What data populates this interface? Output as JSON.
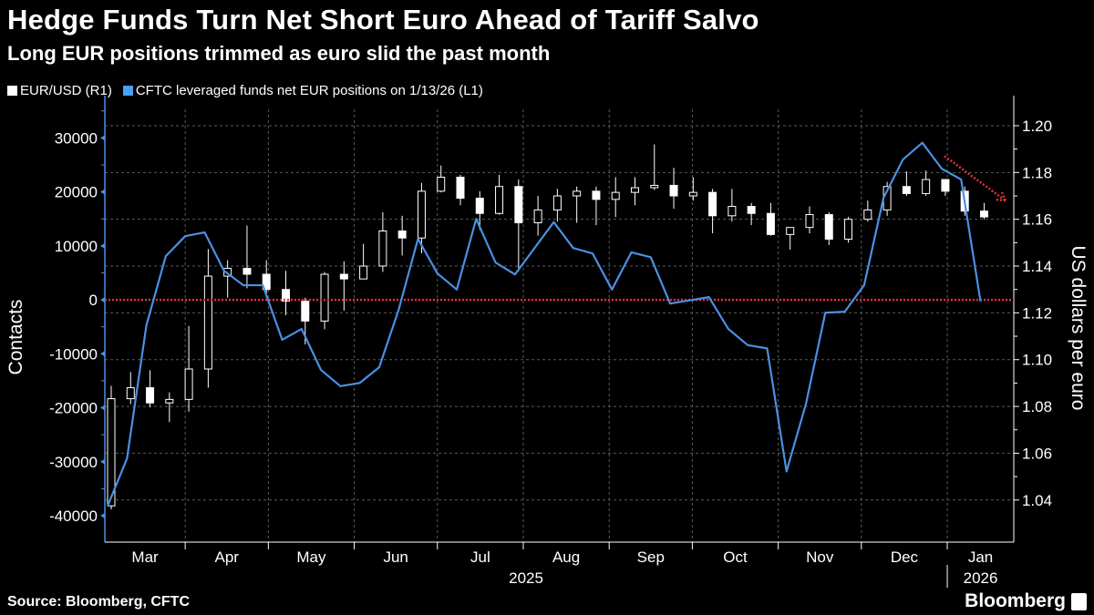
{
  "header": {
    "title": "Hedge Funds Turn Net Short Euro Ahead of Tariff Salvo",
    "subtitle": "Long EUR positions trimmed as euro slid the past month"
  },
  "footer": {
    "source": "Source: Bloomberg, CFTC",
    "logo_text": "Bloomberg"
  },
  "colors": {
    "background": "#000000",
    "eurusd": "#ffffff",
    "cftc": "#4a90e2",
    "zero_line": "#e0303a",
    "grid": "#5a5a5a"
  },
  "chart_data": {
    "type": "line",
    "legend": [
      {
        "label": "EUR/USD (R1)",
        "color": "#ffffff"
      },
      {
        "label": "CFTC leveraged funds net EUR positions on 1/13/26 (L1)",
        "color": "#4a90e2"
      }
    ],
    "legend_position": "top-left",
    "grid": true,
    "xlim": [
      "2025-03-03",
      "2026-01-25"
    ],
    "x_tick_labels": [
      "Mar",
      "Apr",
      "May",
      "Jun",
      "Jul",
      "Aug",
      "Sep",
      "Oct",
      "Nov",
      "Dec",
      "Jan"
    ],
    "x_year_labels": [
      "2025",
      "2026"
    ],
    "left_axis": {
      "label": "Contacts",
      "ylim": [
        -44900,
        35300
      ],
      "ticks": [
        30000,
        20000,
        10000,
        0,
        -10000,
        -20000,
        -30000,
        -40000
      ],
      "tick_labels": [
        "30000",
        "20000",
        "10000",
        "0",
        "-10000",
        "-20000",
        "-30000",
        "-40000"
      ]
    },
    "right_axis": {
      "label": "US dollars per euro",
      "ylim": [
        1.022,
        1.207
      ],
      "ticks": [
        1.2,
        1.18,
        1.16,
        1.14,
        1.12,
        1.1,
        1.08,
        1.06,
        1.04
      ],
      "tick_labels": [
        "1.20",
        "1.18",
        "1.16",
        "1.14",
        "1.12",
        "1.10",
        "1.08",
        "1.06",
        "1.04"
      ]
    },
    "reference_line": {
      "axis": "left",
      "value": 0
    },
    "annotation": {
      "type": "arrow",
      "from": [
        "2025-12-31",
        1.187
      ],
      "to": [
        "2026-01-22",
        1.168
      ]
    },
    "series": [
      {
        "name": "CFTC leveraged funds net EUR positions on 1/13/26 (L1)",
        "axis": "left",
        "type": "line",
        "points": [
          [
            "2025-03-04",
            -38200
          ],
          [
            "2025-03-11",
            -29400
          ],
          [
            "2025-03-18",
            -4700
          ],
          [
            "2025-03-25",
            8100
          ],
          [
            "2025-04-01",
            11800
          ],
          [
            "2025-04-08",
            12500
          ],
          [
            "2025-04-15",
            5400
          ],
          [
            "2025-04-22",
            2700
          ],
          [
            "2025-04-29",
            2700
          ],
          [
            "2025-05-06",
            -7400
          ],
          [
            "2025-05-13",
            -5400
          ],
          [
            "2025-05-20",
            -13000
          ],
          [
            "2025-05-27",
            -16000
          ],
          [
            "2025-06-03",
            -15400
          ],
          [
            "2025-06-10",
            -12500
          ],
          [
            "2025-06-17",
            -1900
          ],
          [
            "2025-06-24",
            11300
          ],
          [
            "2025-07-01",
            4900
          ],
          [
            "2025-07-08",
            1900
          ],
          [
            "2025-07-15",
            15000
          ],
          [
            "2025-07-22",
            6900
          ],
          [
            "2025-07-29",
            4700
          ],
          [
            "2025-08-12",
            14400
          ],
          [
            "2025-08-19",
            9600
          ],
          [
            "2025-08-26",
            8600
          ],
          [
            "2025-09-02",
            1900
          ],
          [
            "2025-09-09",
            8800
          ],
          [
            "2025-09-16",
            7900
          ],
          [
            "2025-09-23",
            -700
          ],
          [
            "2025-10-07",
            500
          ],
          [
            "2025-10-14",
            -5400
          ],
          [
            "2025-10-21",
            -8400
          ],
          [
            "2025-10-28",
            -9000
          ],
          [
            "2025-11-04",
            -31800
          ],
          [
            "2025-11-11",
            -19300
          ],
          [
            "2025-11-18",
            -2400
          ],
          [
            "2025-11-25",
            -2200
          ],
          [
            "2025-12-02",
            2700
          ],
          [
            "2025-12-09",
            18900
          ],
          [
            "2025-12-16",
            26000
          ],
          [
            "2025-12-23",
            29100
          ],
          [
            "2025-12-30",
            24300
          ],
          [
            "2026-01-06",
            22300
          ],
          [
            "2026-01-13",
            -300
          ]
        ]
      },
      {
        "name": "EUR/USD (R1)",
        "axis": "right",
        "type": "candlestick",
        "ohlc": [
          [
            "2025-03-03",
            1.0375,
            1.0888,
            1.036,
            1.0833
          ],
          [
            "2025-03-10",
            1.0833,
            1.0947,
            1.081,
            1.088
          ],
          [
            "2025-03-17",
            1.088,
            1.0955,
            1.0797,
            1.0815
          ],
          [
            "2025-03-24",
            1.0815,
            1.086,
            1.0733,
            1.083
          ],
          [
            "2025-03-31",
            1.083,
            1.1144,
            1.0778,
            1.096
          ],
          [
            "2025-04-07",
            1.096,
            1.1473,
            1.088,
            1.1357
          ],
          [
            "2025-04-14",
            1.1357,
            1.1425,
            1.1265,
            1.139
          ],
          [
            "2025-04-21",
            1.139,
            1.1573,
            1.1305,
            1.1365
          ],
          [
            "2025-04-28",
            1.1365,
            1.1425,
            1.1265,
            1.13
          ],
          [
            "2025-05-05",
            1.13,
            1.138,
            1.119,
            1.125
          ],
          [
            "2025-05-12",
            1.125,
            1.1265,
            1.1065,
            1.1165
          ],
          [
            "2025-05-19",
            1.1165,
            1.1375,
            1.113,
            1.1365
          ],
          [
            "2025-05-26",
            1.1365,
            1.142,
            1.121,
            1.1345
          ],
          [
            "2025-06-02",
            1.1345,
            1.1495,
            1.1355,
            1.14
          ],
          [
            "2025-06-09",
            1.14,
            1.163,
            1.1375,
            1.155
          ],
          [
            "2025-06-16",
            1.155,
            1.1615,
            1.1445,
            1.152
          ],
          [
            "2025-06-23",
            1.152,
            1.1755,
            1.1455,
            1.172
          ],
          [
            "2025-06-30",
            1.172,
            1.183,
            1.1715,
            1.178
          ],
          [
            "2025-07-07",
            1.178,
            1.179,
            1.166,
            1.169
          ],
          [
            "2025-07-14",
            1.169,
            1.172,
            1.1555,
            1.1625
          ],
          [
            "2025-07-21",
            1.1625,
            1.179,
            1.162,
            1.174
          ],
          [
            "2025-07-28",
            1.174,
            1.177,
            1.139,
            1.1585
          ],
          [
            "2025-08-04",
            1.1585,
            1.17,
            1.153,
            1.164
          ],
          [
            "2025-08-11",
            1.164,
            1.173,
            1.159,
            1.17
          ],
          [
            "2025-08-18",
            1.17,
            1.174,
            1.1585,
            1.172
          ],
          [
            "2025-08-25",
            1.172,
            1.174,
            1.1575,
            1.1685
          ],
          [
            "2025-09-01",
            1.1685,
            1.178,
            1.161,
            1.1715
          ],
          [
            "2025-09-08",
            1.1715,
            1.178,
            1.166,
            1.1735
          ],
          [
            "2025-09-15",
            1.1735,
            1.192,
            1.1725,
            1.1745
          ],
          [
            "2025-09-22",
            1.1745,
            1.182,
            1.1645,
            1.17
          ],
          [
            "2025-09-29",
            1.17,
            1.178,
            1.168,
            1.1715
          ],
          [
            "2025-10-06",
            1.1715,
            1.173,
            1.154,
            1.1615
          ],
          [
            "2025-10-13",
            1.1615,
            1.173,
            1.159,
            1.1655
          ],
          [
            "2025-10-20",
            1.1655,
            1.167,
            1.1575,
            1.1625
          ],
          [
            "2025-10-27",
            1.1625,
            1.167,
            1.153,
            1.1535
          ],
          [
            "2025-11-03",
            1.1535,
            1.156,
            1.147,
            1.1565
          ],
          [
            "2025-11-10",
            1.1565,
            1.1655,
            1.154,
            1.162
          ],
          [
            "2025-11-17",
            1.162,
            1.163,
            1.149,
            1.1515
          ],
          [
            "2025-11-24",
            1.1515,
            1.161,
            1.15,
            1.16
          ],
          [
            "2025-12-01",
            1.16,
            1.168,
            1.159,
            1.164
          ],
          [
            "2025-12-08",
            1.164,
            1.176,
            1.1615,
            1.174
          ],
          [
            "2025-12-15",
            1.174,
            1.1805,
            1.17,
            1.171
          ],
          [
            "2025-12-22",
            1.171,
            1.1808,
            1.17,
            1.177
          ],
          [
            "2025-12-29",
            1.177,
            1.177,
            1.17,
            1.172
          ],
          [
            "2026-01-05",
            1.172,
            1.174,
            1.1615,
            1.1635
          ],
          [
            "2026-01-12",
            1.1635,
            1.167,
            1.16,
            1.161
          ]
        ]
      }
    ]
  }
}
